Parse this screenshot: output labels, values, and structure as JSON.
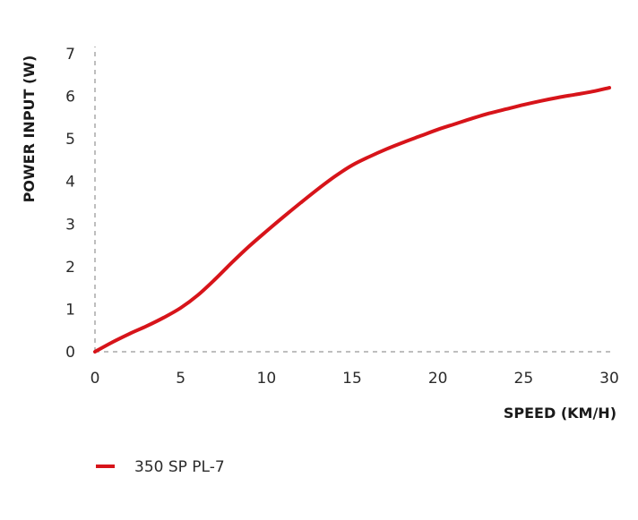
{
  "chart_data": {
    "type": "line",
    "title": "",
    "xlabel": "SPEED (KM/H)",
    "ylabel": "POWER INPUT (W)",
    "xlim": [
      0,
      30
    ],
    "ylim": [
      0,
      7
    ],
    "x_ticks": [
      0,
      5,
      10,
      15,
      20,
      25,
      30
    ],
    "y_ticks": [
      0,
      1,
      2,
      3,
      4,
      5,
      6,
      7
    ],
    "grid": false,
    "legend_position": "bottom-left",
    "series": [
      {
        "name": "350 SP PL-7",
        "color": "#d7141a",
        "x": [
          0,
          1,
          2,
          3,
          4,
          5,
          6,
          7,
          8,
          9,
          10,
          11,
          12,
          13,
          14,
          15,
          16,
          17,
          18,
          19,
          20,
          21,
          22,
          23,
          24,
          25,
          26,
          27,
          28,
          29,
          30
        ],
        "y": [
          0,
          0.22,
          0.42,
          0.6,
          0.8,
          1.03,
          1.33,
          1.7,
          2.1,
          2.48,
          2.83,
          3.17,
          3.5,
          3.82,
          4.12,
          4.38,
          4.58,
          4.76,
          4.92,
          5.07,
          5.22,
          5.35,
          5.48,
          5.6,
          5.7,
          5.8,
          5.89,
          5.97,
          6.04,
          6.11,
          6.2
        ]
      }
    ]
  }
}
